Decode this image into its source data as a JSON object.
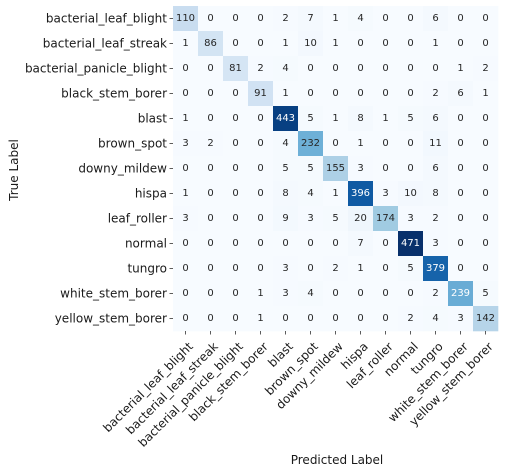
{
  "chart_data": {
    "type": "heatmap",
    "title": "",
    "xlabel": "Predicted Label",
    "ylabel": "True Label",
    "colormap": "Blues",
    "colorbar": false,
    "grid": false,
    "value_range": [
      0,
      471
    ],
    "x_categories": [
      "bacterial_leaf_blight",
      "bacterial_leaf_streak",
      "bacterial_panicle_blight",
      "black_stem_borer",
      "blast",
      "brown_spot",
      "downy_mildew",
      "hispa",
      "leaf_roller",
      "normal",
      "tungro",
      "white_stem_borer",
      "yellow_stem_borer"
    ],
    "y_categories": [
      "bacterial_leaf_blight",
      "bacterial_leaf_streak",
      "bacterial_panicle_blight",
      "black_stem_borer",
      "blast",
      "brown_spot",
      "downy_mildew",
      "hispa",
      "leaf_roller",
      "normal",
      "tungro",
      "white_stem_borer",
      "yellow_stem_borer"
    ],
    "values": [
      [
        110,
        0,
        0,
        0,
        2,
        7,
        1,
        4,
        0,
        0,
        6,
        0,
        0
      ],
      [
        1,
        86,
        0,
        0,
        1,
        10,
        1,
        0,
        0,
        0,
        1,
        0,
        0
      ],
      [
        0,
        0,
        81,
        2,
        4,
        0,
        0,
        0,
        0,
        0,
        0,
        1,
        2
      ],
      [
        0,
        0,
        0,
        91,
        1,
        0,
        0,
        0,
        0,
        0,
        2,
        6,
        1
      ],
      [
        1,
        0,
        0,
        0,
        443,
        5,
        1,
        8,
        1,
        5,
        6,
        0,
        0
      ],
      [
        3,
        2,
        0,
        0,
        4,
        232,
        0,
        1,
        0,
        0,
        11,
        0,
        0
      ],
      [
        0,
        0,
        0,
        0,
        5,
        5,
        155,
        3,
        0,
        0,
        6,
        0,
        0
      ],
      [
        1,
        0,
        0,
        0,
        8,
        4,
        1,
        396,
        3,
        10,
        8,
        0,
        0
      ],
      [
        3,
        0,
        0,
        0,
        9,
        3,
        5,
        20,
        174,
        3,
        2,
        0,
        0
      ],
      [
        0,
        0,
        0,
        0,
        0,
        0,
        0,
        7,
        0,
        471,
        3,
        0,
        0
      ],
      [
        0,
        0,
        0,
        0,
        3,
        0,
        2,
        1,
        0,
        5,
        379,
        0,
        0
      ],
      [
        0,
        0,
        0,
        1,
        3,
        4,
        0,
        0,
        0,
        0,
        2,
        239,
        5
      ],
      [
        0,
        0,
        0,
        1,
        0,
        0,
        0,
        0,
        0,
        2,
        4,
        3,
        142
      ]
    ]
  }
}
